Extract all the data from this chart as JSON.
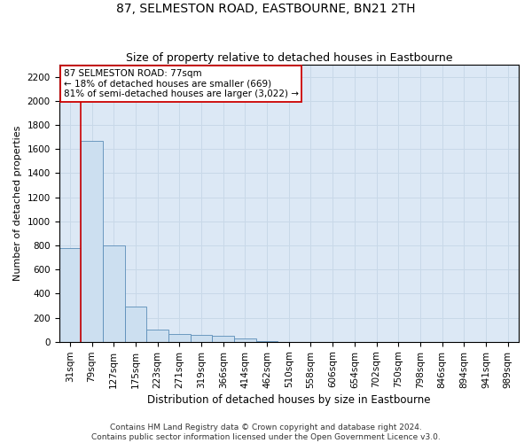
{
  "title": "87, SELMESTON ROAD, EASTBOURNE, BN21 2TH",
  "subtitle": "Size of property relative to detached houses in Eastbourne",
  "xlabel": "Distribution of detached houses by size in Eastbourne",
  "ylabel": "Number of detached properties",
  "categories": [
    "31sqm",
    "79sqm",
    "127sqm",
    "175sqm",
    "223sqm",
    "271sqm",
    "319sqm",
    "366sqm",
    "414sqm",
    "462sqm",
    "510sqm",
    "558sqm",
    "606sqm",
    "654sqm",
    "702sqm",
    "750sqm",
    "798sqm",
    "846sqm",
    "894sqm",
    "941sqm",
    "989sqm"
  ],
  "values": [
    780,
    1670,
    800,
    290,
    100,
    65,
    55,
    50,
    25,
    5,
    0,
    0,
    0,
    0,
    0,
    0,
    0,
    0,
    0,
    0,
    0
  ],
  "bar_color": "#ccdff0",
  "bar_edge_color": "#5b8db8",
  "vline_x_index": 1,
  "annotation_text": "87 SELMESTON ROAD: 77sqm\n← 18% of detached houses are smaller (669)\n81% of semi-detached houses are larger (3,022) →",
  "annotation_box_facecolor": "#ffffff",
  "annotation_box_edgecolor": "#cc0000",
  "vline_color": "#cc0000",
  "ylim": [
    0,
    2300
  ],
  "yticks": [
    0,
    200,
    400,
    600,
    800,
    1000,
    1200,
    1400,
    1600,
    1800,
    2000,
    2200
  ],
  "grid_color": "#c8d8e8",
  "bg_color": "#dce8f5",
  "footer": "Contains HM Land Registry data © Crown copyright and database right 2024.\nContains public sector information licensed under the Open Government Licence v3.0.",
  "title_fontsize": 10,
  "subtitle_fontsize": 9,
  "xlabel_fontsize": 8.5,
  "ylabel_fontsize": 8,
  "tick_fontsize": 7.5,
  "annotation_fontsize": 7.5,
  "footer_fontsize": 6.5
}
